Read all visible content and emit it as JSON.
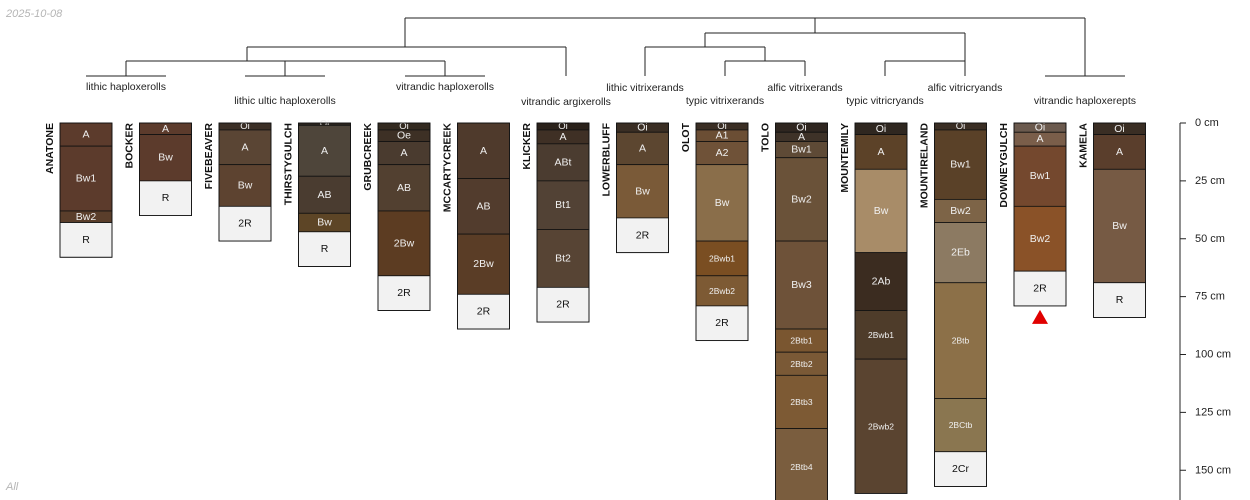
{
  "date_label": "2025-10-08",
  "footer_label": "All",
  "chart_data": {
    "type": "soil-profile-sketch",
    "depth_axis": {
      "unit": "cm",
      "min": 0,
      "max": 160,
      "ticks": [
        {
          "value": 0,
          "label": "0 cm"
        },
        {
          "value": 25,
          "label": "25 cm"
        },
        {
          "value": 50,
          "label": "50 cm"
        },
        {
          "value": 75,
          "label": "75 cm"
        },
        {
          "value": 100,
          "label": "100 cm"
        },
        {
          "value": 125,
          "label": "125 cm"
        },
        {
          "value": 150,
          "label": "150 cm"
        }
      ]
    },
    "classes": [
      {
        "name": "lithic haploxerolls",
        "profiles": [
          0,
          1
        ]
      },
      {
        "name": "lithic ultic haploxerolls",
        "profiles": [
          2,
          3
        ]
      },
      {
        "name": "vitrandic haploxerolls",
        "profiles": [
          4,
          5
        ]
      },
      {
        "name": "vitrandic argixerolls",
        "profiles": [
          6
        ]
      },
      {
        "name": "lithic vitrixerands",
        "profiles": [
          7
        ]
      },
      {
        "name": "typic vitrixerands",
        "profiles": [
          8
        ]
      },
      {
        "name": "alfic vitrixerands",
        "profiles": [
          9
        ]
      },
      {
        "name": "typic vitricryands",
        "profiles": [
          10
        ]
      },
      {
        "name": "alfic vitricryands",
        "profiles": [
          11
        ]
      },
      {
        "name": "vitrandic haploxerepts",
        "profiles": [
          12,
          13
        ]
      }
    ],
    "profiles": [
      {
        "name": "ANATONE",
        "horizons": [
          {
            "name": "A",
            "top": 0,
            "bottom": 10,
            "color": "#5c3b2c"
          },
          {
            "name": "Bw1",
            "top": 10,
            "bottom": 38,
            "color": "#5c3b2c"
          },
          {
            "name": "Bw2",
            "top": 38,
            "bottom": 43,
            "color": "#5a3e2b"
          },
          {
            "name": "R",
            "top": 43,
            "bottom": 58,
            "color": "#f2f2f2"
          }
        ]
      },
      {
        "name": "BOCKER",
        "horizons": [
          {
            "name": "A",
            "top": 0,
            "bottom": 5,
            "color": "#5c3b2c"
          },
          {
            "name": "Bw",
            "top": 5,
            "bottom": 25,
            "color": "#5c3b2c"
          },
          {
            "name": "R",
            "top": 25,
            "bottom": 40,
            "color": "#f2f2f2"
          }
        ]
      },
      {
        "name": "FIVEBEAVER",
        "horizons": [
          {
            "name": "Oi",
            "top": 0,
            "bottom": 3,
            "color": "#3b2f26"
          },
          {
            "name": "A",
            "top": 3,
            "bottom": 18,
            "color": "#5a4534"
          },
          {
            "name": "Bw",
            "top": 18,
            "bottom": 36,
            "color": "#5d4330"
          },
          {
            "name": "2R",
            "top": 36,
            "bottom": 51,
            "color": "#f2f2f2"
          }
        ]
      },
      {
        "name": "THIRSTYGULCH",
        "horizons": [
          {
            "name": "Oi",
            "top": 0,
            "bottom": 1,
            "color": "#2e2720"
          },
          {
            "name": "A",
            "top": 1,
            "bottom": 23,
            "color": "#4e453a"
          },
          {
            "name": "AB",
            "top": 23,
            "bottom": 39,
            "color": "#4a3c30"
          },
          {
            "name": "Bw",
            "top": 39,
            "bottom": 47,
            "color": "#5d4526"
          },
          {
            "name": "R",
            "top": 47,
            "bottom": 62,
            "color": "#f2f2f2"
          }
        ]
      },
      {
        "name": "GRUBCREEK",
        "horizons": [
          {
            "name": "Oi",
            "top": 0,
            "bottom": 3,
            "color": "#332a20"
          },
          {
            "name": "Oe",
            "top": 3,
            "bottom": 8,
            "color": "#3d3025"
          },
          {
            "name": "A",
            "top": 8,
            "bottom": 18,
            "color": "#4a3b2f"
          },
          {
            "name": "AB",
            "top": 18,
            "bottom": 38,
            "color": "#524030"
          },
          {
            "name": "2Bw",
            "top": 38,
            "bottom": 66,
            "color": "#5c3c22"
          },
          {
            "name": "2R",
            "top": 66,
            "bottom": 81,
            "color": "#f2f2f2"
          }
        ]
      },
      {
        "name": "MCCARTYCREEK",
        "horizons": [
          {
            "name": "A",
            "top": 0,
            "bottom": 24,
            "color": "#4f3a2c"
          },
          {
            "name": "AB",
            "top": 24,
            "bottom": 48,
            "color": "#523c2d"
          },
          {
            "name": "2Bw",
            "top": 48,
            "bottom": 74,
            "color": "#5a3d26"
          },
          {
            "name": "2R",
            "top": 74,
            "bottom": 89,
            "color": "#f2f2f2"
          }
        ]
      },
      {
        "name": "KLICKER",
        "horizons": [
          {
            "name": "Oi",
            "top": 0,
            "bottom": 3,
            "color": "#2a211a"
          },
          {
            "name": "A",
            "top": 3,
            "bottom": 9,
            "color": "#3f3025"
          },
          {
            "name": "ABt",
            "top": 9,
            "bottom": 25,
            "color": "#4b3c30"
          },
          {
            "name": "Bt1",
            "top": 25,
            "bottom": 46,
            "color": "#524235"
          },
          {
            "name": "Bt2",
            "top": 46,
            "bottom": 71,
            "color": "#574434"
          },
          {
            "name": "2R",
            "top": 71,
            "bottom": 86,
            "color": "#f2f2f2"
          }
        ]
      },
      {
        "name": "LOWERBLUFF",
        "horizons": [
          {
            "name": "Oi",
            "top": 0,
            "bottom": 4,
            "color": "#3a2e24"
          },
          {
            "name": "A",
            "top": 4,
            "bottom": 18,
            "color": "#5c4630"
          },
          {
            "name": "Bw",
            "top": 18,
            "bottom": 41,
            "color": "#7a5a38"
          },
          {
            "name": "2R",
            "top": 41,
            "bottom": 56,
            "color": "#f2f2f2"
          }
        ]
      },
      {
        "name": "OLOT",
        "horizons": [
          {
            "name": "Oi",
            "top": 0,
            "bottom": 3,
            "color": "#3a2e24"
          },
          {
            "name": "A1",
            "top": 3,
            "bottom": 8,
            "color": "#6b4e34"
          },
          {
            "name": "A2",
            "top": 8,
            "bottom": 18,
            "color": "#6f5238"
          },
          {
            "name": "Bw",
            "top": 18,
            "bottom": 51,
            "color": "#8a6e4a"
          },
          {
            "name": "2Bwb1",
            "top": 51,
            "bottom": 66,
            "color": "#7a4e22"
          },
          {
            "name": "2Bwb2",
            "top": 66,
            "bottom": 79,
            "color": "#7d5a34"
          },
          {
            "name": "2R",
            "top": 79,
            "bottom": 94,
            "color": "#f2f2f2"
          }
        ]
      },
      {
        "name": "TOLO",
        "horizons": [
          {
            "name": "Oi",
            "top": 0,
            "bottom": 4,
            "color": "#2f2620"
          },
          {
            "name": "A",
            "top": 4,
            "bottom": 8,
            "color": "#3e3228"
          },
          {
            "name": "Bw1",
            "top": 8,
            "bottom": 15,
            "color": "#5e4a36"
          },
          {
            "name": "Bw2",
            "top": 15,
            "bottom": 51,
            "color": "#6a5239"
          },
          {
            "name": "Bw3",
            "top": 51,
            "bottom": 89,
            "color": "#6e5239"
          },
          {
            "name": "2Btb1",
            "top": 89,
            "bottom": 99,
            "color": "#7a5630"
          },
          {
            "name": "2Btb2",
            "top": 99,
            "bottom": 109,
            "color": "#7a5936"
          },
          {
            "name": "2Btb3",
            "top": 109,
            "bottom": 132,
            "color": "#7d5a34"
          },
          {
            "name": "2Btb4",
            "top": 132,
            "bottom": 165,
            "color": "#7a5d3e"
          }
        ]
      },
      {
        "name": "MOUNTEMILY",
        "horizons": [
          {
            "name": "Oi",
            "top": 0,
            "bottom": 5,
            "color": "#2f2720"
          },
          {
            "name": "A",
            "top": 5,
            "bottom": 20,
            "color": "#5c4228"
          },
          {
            "name": "Bw",
            "top": 20,
            "bottom": 56,
            "color": "#a88c68"
          },
          {
            "name": "2Ab",
            "top": 56,
            "bottom": 81,
            "color": "#3b2c20"
          },
          {
            "name": "2Bwb1",
            "top": 81,
            "bottom": 102,
            "color": "#4e3c2a"
          },
          {
            "name": "2Bwb2",
            "top": 102,
            "bottom": 160,
            "color": "#5a4430"
          }
        ]
      },
      {
        "name": "MOUNTIRELAND",
        "horizons": [
          {
            "name": "Oi",
            "top": 0,
            "bottom": 3,
            "color": "#3a2e24"
          },
          {
            "name": "Bw1",
            "top": 3,
            "bottom": 33,
            "color": "#5a4128"
          },
          {
            "name": "Bw2",
            "top": 33,
            "bottom": 43,
            "color": "#7d6447"
          },
          {
            "name": "2Eb",
            "top": 43,
            "bottom": 69,
            "color": "#8c7a62"
          },
          {
            "name": "2Btb",
            "top": 69,
            "bottom": 119,
            "color": "#8c7048"
          },
          {
            "name": "2BCtb",
            "top": 119,
            "bottom": 142,
            "color": "#8a7650"
          },
          {
            "name": "2Cr",
            "top": 142,
            "bottom": 157,
            "color": "#f2f2f2"
          }
        ]
      },
      {
        "name": "DOWNEYGULCH",
        "horizons": [
          {
            "name": "Oi",
            "top": 0,
            "bottom": 4,
            "color": "#6b5a4e"
          },
          {
            "name": "A",
            "top": 4,
            "bottom": 10,
            "color": "#7a5e4a"
          },
          {
            "name": "Bw1",
            "top": 10,
            "bottom": 36,
            "color": "#74482e"
          },
          {
            "name": "Bw2",
            "top": 36,
            "bottom": 64,
            "color": "#8a5228"
          },
          {
            "name": "2R",
            "top": 64,
            "bottom": 79,
            "color": "#f2f2f2"
          }
        ]
      },
      {
        "name": "KAMELA",
        "horizons": [
          {
            "name": "Oi",
            "top": 0,
            "bottom": 5,
            "color": "#3a2e24"
          },
          {
            "name": "A",
            "top": 5,
            "bottom": 20,
            "color": "#5a3e2c"
          },
          {
            "name": "Bw",
            "top": 20,
            "bottom": 69,
            "color": "#765a44"
          },
          {
            "name": "R",
            "top": 69,
            "bottom": 84,
            "color": "#f2f2f2"
          }
        ]
      }
    ],
    "marker": {
      "profile": 12,
      "color": "#e00000"
    }
  }
}
